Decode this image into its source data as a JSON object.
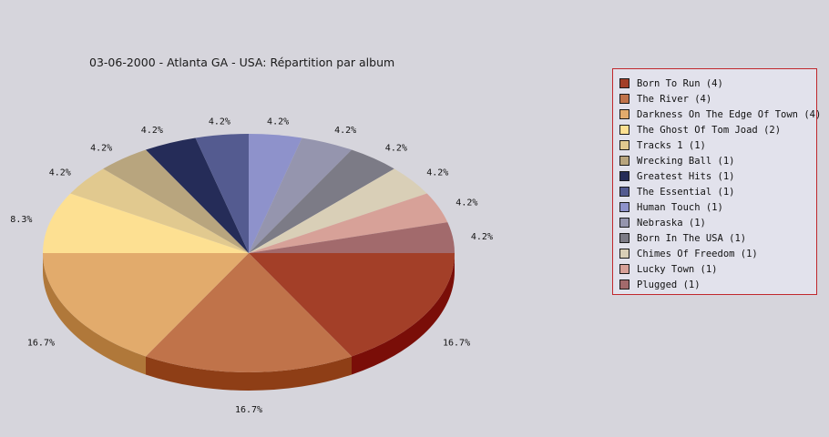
{
  "chart_data": {
    "type": "pie",
    "title": "03-06-2000 - Atlanta GA - USA:  Répartition par album",
    "slices": [
      {
        "label": "Born To Run (4)",
        "value": 4,
        "pct_label": "16.7%",
        "color": "#a33f28",
        "side": "#7a0e08"
      },
      {
        "label": "The River (4)",
        "value": 4,
        "pct_label": "16.7%",
        "color": "#c0734a",
        "side": "#8e3e16"
      },
      {
        "label": "Darkness On The Edge Of Town (4)",
        "value": 4,
        "pct_label": "16.7%",
        "color": "#e2ab6c",
        "side": "#b0783a"
      },
      {
        "label": "The Ghost Of Tom Joad (2)",
        "value": 2,
        "pct_label": "8.3%",
        "color": "#fde092",
        "side": "#c9a85a"
      },
      {
        "label": "Tracks 1 (1)",
        "value": 1,
        "pct_label": "4.2%",
        "color": "#e1c98f",
        "side": "#ad955a"
      },
      {
        "label": "Wrecking Ball (1)",
        "value": 1,
        "pct_label": "4.2%",
        "color": "#b8a57e",
        "side": "#857450"
      },
      {
        "label": "Greatest Hits (1)",
        "value": 1,
        "pct_label": "4.2%",
        "color": "#252c58",
        "side": "#141838"
      },
      {
        "label": "The Essential (1)",
        "value": 1,
        "pct_label": "4.2%",
        "color": "#545b90",
        "side": "#2f3560"
      },
      {
        "label": "Human Touch (1)",
        "value": 1,
        "pct_label": "4.2%",
        "color": "#8e92cb",
        "side": "#5c6098"
      },
      {
        "label": "Nebraska (1)",
        "value": 1,
        "pct_label": "4.2%",
        "color": "#9595ae",
        "side": "#63637c"
      },
      {
        "label": "Born In The USA (1)",
        "value": 1,
        "pct_label": "4.2%",
        "color": "#7c7b86",
        "side": "#4f4e58"
      },
      {
        "label": "Chimes Of Freedom (1)",
        "value": 1,
        "pct_label": "4.2%",
        "color": "#d9cfb7",
        "side": "#a89e86"
      },
      {
        "label": "Lucky Town (1)",
        "value": 1,
        "pct_label": "4.2%",
        "color": "#d7a198",
        "side": "#a56f66"
      },
      {
        "label": "Plugged (1)",
        "value": 1,
        "pct_label": "4.2%",
        "color": "#a26a6c",
        "side": "#70393c"
      }
    ],
    "legend": "right",
    "grid": false
  }
}
